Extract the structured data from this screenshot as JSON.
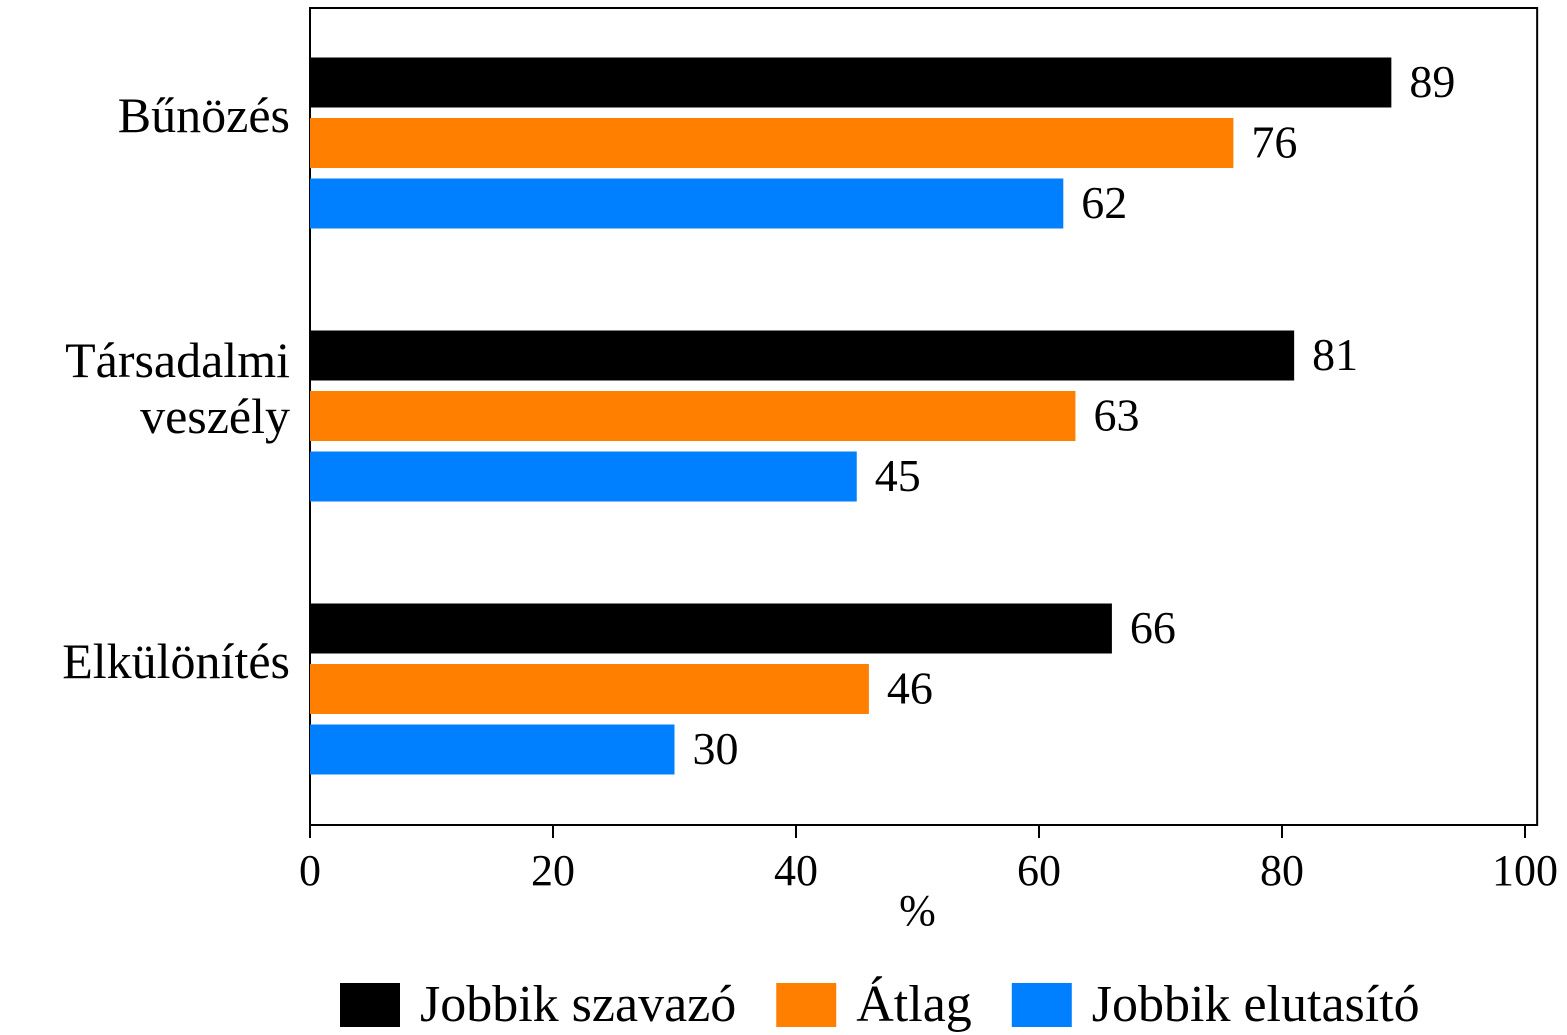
{
  "chart_data": {
    "type": "bar",
    "orientation": "horizontal",
    "categories": [
      "Bűnözés",
      "Társadalmi veszély",
      "Elkülönítés"
    ],
    "series": [
      {
        "name": "Jobbik szavazó",
        "color": "#000000",
        "values": [
          89,
          81,
          66
        ]
      },
      {
        "name": "Átlag",
        "color": "#ff8000",
        "values": [
          76,
          63,
          46
        ]
      },
      {
        "name": "Jobbik elutasító",
        "color": "#0080ff",
        "values": [
          62,
          45,
          30
        ]
      }
    ],
    "xlabel": "%",
    "xlim": [
      0,
      101
    ],
    "xticks": [
      0,
      20,
      40,
      60,
      80,
      100
    ],
    "legend": "bottom"
  }
}
